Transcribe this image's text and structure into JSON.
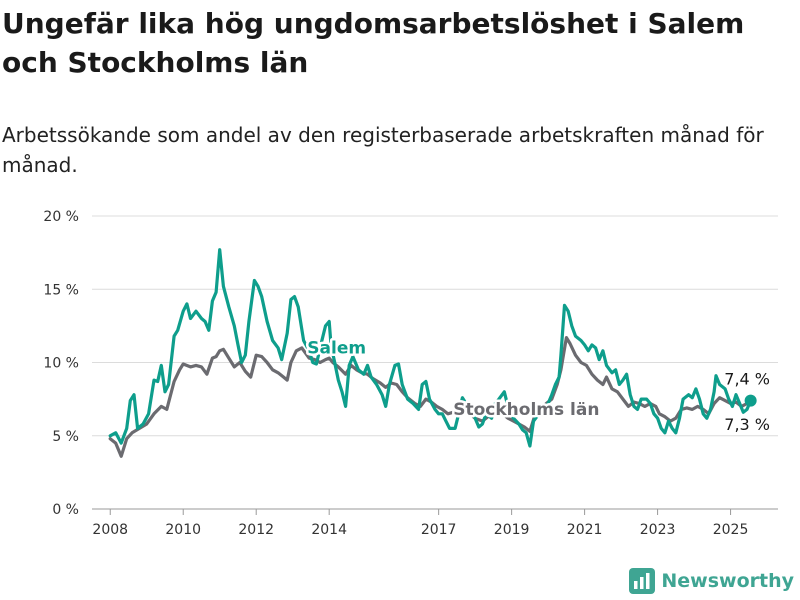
{
  "title": "Ungefär lika hög ungdomsarbetslöshet i Salem och Stockholms län",
  "subtitle": "Arbetssökande som andel av den registerbaserade arbetskraften månad för månad.",
  "brand": "Newsworthy",
  "chart_data": {
    "type": "line",
    "ylim": [
      0,
      20
    ],
    "xlim": [
      2007.5,
      2026.3
    ],
    "grid": true,
    "y_ticks": [
      {
        "value": 0,
        "label": "0 %"
      },
      {
        "value": 5,
        "label": "5 %"
      },
      {
        "value": 10,
        "label": "10 %"
      },
      {
        "value": 15,
        "label": "15 %"
      },
      {
        "value": 20,
        "label": "20 %"
      }
    ],
    "x_ticks": [
      {
        "value": 2008,
        "label": "2008"
      },
      {
        "value": 2010,
        "label": "2010"
      },
      {
        "value": 2012,
        "label": "2012"
      },
      {
        "value": 2014,
        "label": "2014"
      },
      {
        "value": 2017,
        "label": "2017"
      },
      {
        "value": 2019,
        "label": "2019"
      },
      {
        "value": 2021,
        "label": "2021"
      },
      {
        "value": 2023,
        "label": "2023"
      },
      {
        "value": 2025,
        "label": "2025"
      }
    ],
    "series": [
      {
        "name": "Salem",
        "color": "#0e9e8c",
        "end_label": "7,4 %",
        "points": [
          [
            2008.0,
            5.0
          ],
          [
            2008.15,
            5.2
          ],
          [
            2008.3,
            4.5
          ],
          [
            2008.45,
            5.5
          ],
          [
            2008.55,
            7.4
          ],
          [
            2008.65,
            7.8
          ],
          [
            2008.75,
            5.5
          ],
          [
            2008.9,
            5.8
          ],
          [
            2009.05,
            6.5
          ],
          [
            2009.2,
            8.8
          ],
          [
            2009.3,
            8.7
          ],
          [
            2009.4,
            9.8
          ],
          [
            2009.5,
            8.0
          ],
          [
            2009.6,
            8.5
          ],
          [
            2009.75,
            11.8
          ],
          [
            2009.85,
            12.2
          ],
          [
            2010.0,
            13.5
          ],
          [
            2010.1,
            14.0
          ],
          [
            2010.2,
            13.0
          ],
          [
            2010.35,
            13.5
          ],
          [
            2010.5,
            13.0
          ],
          [
            2010.6,
            12.8
          ],
          [
            2010.7,
            12.2
          ],
          [
            2010.8,
            14.2
          ],
          [
            2010.9,
            14.8
          ],
          [
            2011.0,
            17.7
          ],
          [
            2011.1,
            15.2
          ],
          [
            2011.25,
            13.8
          ],
          [
            2011.4,
            12.5
          ],
          [
            2011.5,
            11.2
          ],
          [
            2011.6,
            10.0
          ],
          [
            2011.7,
            10.5
          ],
          [
            2011.8,
            12.8
          ],
          [
            2011.95,
            15.6
          ],
          [
            2012.05,
            15.2
          ],
          [
            2012.15,
            14.5
          ],
          [
            2012.3,
            12.8
          ],
          [
            2012.45,
            11.5
          ],
          [
            2012.6,
            11.0
          ],
          [
            2012.7,
            10.2
          ],
          [
            2012.85,
            12.0
          ],
          [
            2012.95,
            14.3
          ],
          [
            2013.05,
            14.5
          ],
          [
            2013.15,
            13.8
          ],
          [
            2013.3,
            11.5
          ],
          [
            2013.45,
            10.8
          ],
          [
            2013.55,
            10.0
          ],
          [
            2013.65,
            9.9
          ],
          [
            2013.8,
            11.5
          ],
          [
            2013.9,
            12.5
          ],
          [
            2014.0,
            12.8
          ],
          [
            2014.05,
            11.2
          ],
          [
            2014.15,
            10.0
          ],
          [
            2014.25,
            8.8
          ],
          [
            2014.35,
            8.0
          ],
          [
            2014.45,
            7.0
          ],
          [
            2014.55,
            9.8
          ],
          [
            2014.65,
            10.4
          ],
          [
            2014.8,
            9.5
          ],
          [
            2014.95,
            9.2
          ],
          [
            2015.05,
            9.8
          ],
          [
            2015.15,
            9.0
          ],
          [
            2015.3,
            8.5
          ],
          [
            2015.45,
            7.8
          ],
          [
            2015.55,
            7.0
          ],
          [
            2015.65,
            8.5
          ],
          [
            2015.8,
            9.8
          ],
          [
            2015.9,
            9.9
          ],
          [
            2016.0,
            8.5
          ],
          [
            2016.15,
            7.5
          ],
          [
            2016.3,
            7.2
          ],
          [
            2016.45,
            6.8
          ],
          [
            2016.55,
            8.5
          ],
          [
            2016.65,
            8.7
          ],
          [
            2016.75,
            7.5
          ],
          [
            2016.9,
            6.8
          ],
          [
            2017.0,
            6.5
          ],
          [
            2017.1,
            6.5
          ],
          [
            2017.2,
            6.0
          ],
          [
            2017.3,
            5.5
          ],
          [
            2017.45,
            5.5
          ],
          [
            2017.55,
            6.5
          ],
          [
            2017.65,
            7.6
          ],
          [
            2017.75,
            7.2
          ],
          [
            2017.9,
            6.8
          ],
          [
            2018.0,
            6.2
          ],
          [
            2018.1,
            5.6
          ],
          [
            2018.2,
            5.8
          ],
          [
            2018.3,
            6.5
          ],
          [
            2018.45,
            6.2
          ],
          [
            2018.55,
            7.2
          ],
          [
            2018.65,
            7.5
          ],
          [
            2018.8,
            8.0
          ],
          [
            2018.95,
            6.5
          ],
          [
            2019.05,
            6.2
          ],
          [
            2019.2,
            5.8
          ],
          [
            2019.3,
            5.4
          ],
          [
            2019.4,
            5.2
          ],
          [
            2019.5,
            4.3
          ],
          [
            2019.6,
            6.0
          ],
          [
            2019.75,
            6.5
          ],
          [
            2019.9,
            6.8
          ],
          [
            2020.0,
            7.2
          ],
          [
            2020.1,
            7.8
          ],
          [
            2020.2,
            8.5
          ],
          [
            2020.3,
            9.0
          ],
          [
            2020.35,
            10.5
          ],
          [
            2020.45,
            13.9
          ],
          [
            2020.55,
            13.5
          ],
          [
            2020.65,
            12.5
          ],
          [
            2020.75,
            11.8
          ],
          [
            2020.9,
            11.5
          ],
          [
            2021.0,
            11.2
          ],
          [
            2021.1,
            10.8
          ],
          [
            2021.2,
            11.2
          ],
          [
            2021.3,
            11.0
          ],
          [
            2021.4,
            10.2
          ],
          [
            2021.5,
            10.8
          ],
          [
            2021.6,
            9.8
          ],
          [
            2021.75,
            9.3
          ],
          [
            2021.85,
            9.5
          ],
          [
            2021.95,
            8.5
          ],
          [
            2022.05,
            8.8
          ],
          [
            2022.15,
            9.2
          ],
          [
            2022.25,
            7.8
          ],
          [
            2022.35,
            7.0
          ],
          [
            2022.45,
            6.8
          ],
          [
            2022.55,
            7.5
          ],
          [
            2022.7,
            7.5
          ],
          [
            2022.8,
            7.2
          ],
          [
            2022.9,
            6.5
          ],
          [
            2023.0,
            6.2
          ],
          [
            2023.1,
            5.5
          ],
          [
            2023.2,
            5.2
          ],
          [
            2023.3,
            6.0
          ],
          [
            2023.4,
            5.5
          ],
          [
            2023.5,
            5.2
          ],
          [
            2023.6,
            6.2
          ],
          [
            2023.7,
            7.5
          ],
          [
            2023.85,
            7.8
          ],
          [
            2023.95,
            7.6
          ],
          [
            2024.05,
            8.2
          ],
          [
            2024.15,
            7.5
          ],
          [
            2024.25,
            6.5
          ],
          [
            2024.35,
            6.2
          ],
          [
            2024.45,
            6.8
          ],
          [
            2024.55,
            8.0
          ],
          [
            2024.6,
            9.1
          ],
          [
            2024.7,
            8.5
          ],
          [
            2024.85,
            8.2
          ],
          [
            2024.95,
            7.5
          ],
          [
            2025.05,
            7.0
          ],
          [
            2025.15,
            7.8
          ],
          [
            2025.25,
            7.2
          ],
          [
            2025.35,
            6.6
          ],
          [
            2025.45,
            6.8
          ],
          [
            2025.55,
            7.4
          ]
        ]
      },
      {
        "name": "Stockholms län",
        "color": "#6b6b70",
        "end_label": "7,3 %",
        "points": [
          [
            2008.0,
            4.8
          ],
          [
            2008.15,
            4.5
          ],
          [
            2008.3,
            3.6
          ],
          [
            2008.45,
            4.8
          ],
          [
            2008.6,
            5.2
          ],
          [
            2008.8,
            5.5
          ],
          [
            2009.0,
            5.8
          ],
          [
            2009.2,
            6.5
          ],
          [
            2009.4,
            7.0
          ],
          [
            2009.55,
            6.8
          ],
          [
            2009.75,
            8.7
          ],
          [
            2009.9,
            9.5
          ],
          [
            2010.0,
            9.9
          ],
          [
            2010.2,
            9.7
          ],
          [
            2010.35,
            9.8
          ],
          [
            2010.5,
            9.7
          ],
          [
            2010.65,
            9.2
          ],
          [
            2010.8,
            10.3
          ],
          [
            2010.9,
            10.4
          ],
          [
            2011.0,
            10.8
          ],
          [
            2011.1,
            10.9
          ],
          [
            2011.25,
            10.3
          ],
          [
            2011.4,
            9.7
          ],
          [
            2011.55,
            10.0
          ],
          [
            2011.7,
            9.4
          ],
          [
            2011.85,
            9.0
          ],
          [
            2012.0,
            10.5
          ],
          [
            2012.15,
            10.4
          ],
          [
            2012.3,
            10.0
          ],
          [
            2012.45,
            9.5
          ],
          [
            2012.6,
            9.3
          ],
          [
            2012.75,
            9.0
          ],
          [
            2012.85,
            8.8
          ],
          [
            2012.95,
            10.0
          ],
          [
            2013.1,
            10.8
          ],
          [
            2013.25,
            11.0
          ],
          [
            2013.45,
            10.3
          ],
          [
            2013.6,
            10.2
          ],
          [
            2013.75,
            10.0
          ],
          [
            2013.9,
            10.2
          ],
          [
            2014.0,
            10.3
          ],
          [
            2014.1,
            10.0
          ],
          [
            2014.25,
            9.7
          ],
          [
            2014.45,
            9.2
          ],
          [
            2014.6,
            9.8
          ],
          [
            2014.75,
            9.5
          ],
          [
            2014.9,
            9.3
          ],
          [
            2015.05,
            9.2
          ],
          [
            2015.2,
            8.9
          ],
          [
            2015.4,
            8.6
          ],
          [
            2015.55,
            8.3
          ],
          [
            2015.7,
            8.6
          ],
          [
            2015.85,
            8.5
          ],
          [
            2016.0,
            8.0
          ],
          [
            2016.15,
            7.6
          ],
          [
            2016.35,
            7.2
          ],
          [
            2016.5,
            7.0
          ],
          [
            2016.65,
            7.5
          ],
          [
            2016.8,
            7.3
          ],
          [
            2016.95,
            7.0
          ],
          [
            2017.1,
            6.8
          ],
          [
            2017.25,
            6.5
          ],
          [
            2017.4,
            6.6
          ],
          [
            2017.55,
            6.4
          ],
          [
            2017.7,
            6.8
          ],
          [
            2017.85,
            6.5
          ],
          [
            2018.0,
            6.2
          ],
          [
            2018.2,
            6.0
          ],
          [
            2018.35,
            6.3
          ],
          [
            2018.55,
            6.5
          ],
          [
            2018.7,
            6.6
          ],
          [
            2018.9,
            6.2
          ],
          [
            2019.05,
            6.0
          ],
          [
            2019.2,
            5.8
          ],
          [
            2019.35,
            5.6
          ],
          [
            2019.5,
            5.3
          ],
          [
            2019.65,
            6.5
          ],
          [
            2019.8,
            6.8
          ],
          [
            2019.95,
            7.2
          ],
          [
            2020.1,
            7.5
          ],
          [
            2020.25,
            8.5
          ],
          [
            2020.35,
            9.5
          ],
          [
            2020.5,
            11.7
          ],
          [
            2020.6,
            11.3
          ],
          [
            2020.75,
            10.5
          ],
          [
            2020.9,
            10.0
          ],
          [
            2021.05,
            9.8
          ],
          [
            2021.2,
            9.2
          ],
          [
            2021.35,
            8.8
          ],
          [
            2021.5,
            8.5
          ],
          [
            2021.6,
            9.0
          ],
          [
            2021.75,
            8.2
          ],
          [
            2021.9,
            8.0
          ],
          [
            2022.05,
            7.5
          ],
          [
            2022.2,
            7.0
          ],
          [
            2022.35,
            7.3
          ],
          [
            2022.5,
            7.2
          ],
          [
            2022.65,
            7.0
          ],
          [
            2022.8,
            7.2
          ],
          [
            2022.95,
            7.0
          ],
          [
            2023.05,
            6.5
          ],
          [
            2023.2,
            6.3
          ],
          [
            2023.35,
            6.0
          ],
          [
            2023.5,
            6.2
          ],
          [
            2023.65,
            6.8
          ],
          [
            2023.8,
            6.9
          ],
          [
            2023.95,
            6.8
          ],
          [
            2024.1,
            7.0
          ],
          [
            2024.25,
            6.8
          ],
          [
            2024.4,
            6.5
          ],
          [
            2024.55,
            7.2
          ],
          [
            2024.7,
            7.6
          ],
          [
            2024.85,
            7.4
          ],
          [
            2025.0,
            7.2
          ],
          [
            2025.15,
            7.3
          ],
          [
            2025.3,
            7.0
          ],
          [
            2025.45,
            7.2
          ],
          [
            2025.55,
            7.3
          ]
        ]
      }
    ],
    "annotations": [
      {
        "series": "Salem",
        "text": "Salem",
        "x": 2013.4,
        "y": 10.6
      },
      {
        "series": "Stockholms län",
        "text": "Stockholms län",
        "x": 2017.4,
        "y": 6.4
      }
    ]
  }
}
